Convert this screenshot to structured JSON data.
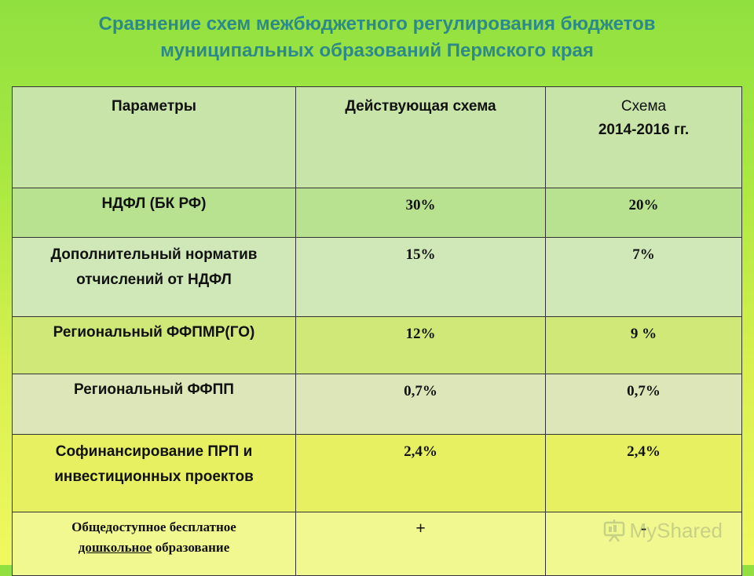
{
  "slide": {
    "title_line1": "Сравнение схем межбюджетного регулирования бюджетов",
    "title_line2": "муниципальных образований Пермского края"
  },
  "table": {
    "headers": {
      "params": "Параметры",
      "current": "Действующая схема",
      "new_line1": "Схема",
      "new_line2": "2014-2016 гг."
    },
    "rows": [
      {
        "param": "НДФЛ (БК РФ)",
        "current": "30%",
        "new": "20%"
      },
      {
        "param_line1": "Дополнительный норматив",
        "param_line2": "отчислений от НДФЛ",
        "current": "15%",
        "new": "7%"
      },
      {
        "param": "Региональный ФФПМР(ГО)",
        "current": "12%",
        "new": "9 %"
      },
      {
        "param": "Региональный ФФПП",
        "current": "0,7%",
        "new": "0,7%"
      },
      {
        "param_line1": "Софинансирование ПРП и",
        "param_line2": "инвестиционных проектов",
        "current": "2,4%",
        "new": "2,4%"
      },
      {
        "param_line1": "Общедоступное бесплатное",
        "param_line2a": "дошкольное",
        "param_line2b": " образование",
        "current": "+",
        "new": "-"
      }
    ]
  },
  "watermark": {
    "text": "MyShared",
    "icon": "presentation-board-icon"
  }
}
